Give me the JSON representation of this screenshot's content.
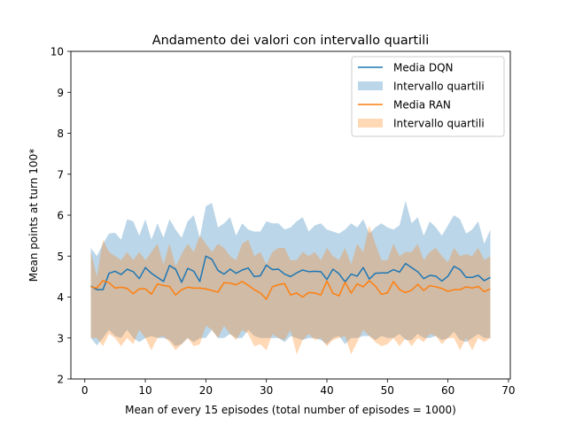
{
  "chart_data": {
    "type": "line",
    "title": "Andamento dei valori con intervallo quartili",
    "xlabel": "Mean of every 15 episodes (total number of episodes = 1000)",
    "ylabel": "Mean points at turn 100*",
    "xlim": [
      -2.3,
      70.3
    ],
    "ylim": [
      2,
      10
    ],
    "xticks": [
      0,
      10,
      20,
      30,
      40,
      50,
      60,
      70
    ],
    "yticks": [
      2,
      3,
      4,
      5,
      6,
      7,
      8,
      9,
      10
    ],
    "grid": false,
    "legend_placement": "top-right",
    "x": [
      1,
      2,
      3,
      4,
      5,
      6,
      7,
      8,
      9,
      10,
      11,
      12,
      13,
      14,
      15,
      16,
      17,
      18,
      19,
      20,
      21,
      22,
      23,
      24,
      25,
      26,
      27,
      28,
      29,
      30,
      31,
      32,
      33,
      34,
      35,
      36,
      37,
      38,
      39,
      40,
      41,
      42,
      43,
      44,
      45,
      46,
      47,
      48,
      49,
      50,
      51,
      52,
      53,
      54,
      55,
      56,
      57,
      58,
      59,
      60,
      61,
      62,
      63,
      64,
      65,
      66,
      67
    ],
    "series": [
      {
        "name": "Media DQN",
        "band_name": "Intervallo quartili",
        "color": "#1f77b4",
        "band_color": "#1f77b4",
        "band_opacity": 0.3,
        "values": [
          4.27,
          4.18,
          4.18,
          4.58,
          4.63,
          4.55,
          4.68,
          4.62,
          4.45,
          4.72,
          4.58,
          4.48,
          4.38,
          4.77,
          4.68,
          4.36,
          4.7,
          4.63,
          4.38,
          5.0,
          4.92,
          4.65,
          4.56,
          4.68,
          4.58,
          4.66,
          4.71,
          4.5,
          4.52,
          4.78,
          4.67,
          4.68,
          4.56,
          4.5,
          4.59,
          4.66,
          4.62,
          4.63,
          4.62,
          4.43,
          4.68,
          4.57,
          4.37,
          4.56,
          4.51,
          4.72,
          4.44,
          4.58,
          4.59,
          4.59,
          4.67,
          4.61,
          4.82,
          4.72,
          4.62,
          4.45,
          4.53,
          4.51,
          4.39,
          4.51,
          4.75,
          4.67,
          4.48,
          4.48,
          4.53,
          4.4,
          4.48
        ],
        "q_low": [
          3.0,
          2.82,
          3.0,
          3.2,
          3.05,
          3.0,
          3.2,
          3.0,
          2.9,
          3.0,
          3.05,
          3.0,
          3.0,
          2.95,
          2.8,
          2.85,
          3.0,
          2.9,
          3.0,
          3.0,
          3.2,
          3.0,
          3.0,
          3.1,
          3.0,
          3.0,
          3.2,
          3.05,
          3.0,
          3.0,
          3.0,
          3.0,
          2.9,
          3.05,
          3.0,
          2.95,
          3.0,
          3.0,
          2.95,
          2.85,
          3.0,
          3.05,
          2.85,
          3.0,
          3.0,
          3.05,
          3.05,
          2.95,
          3.05,
          3.0,
          3.0,
          3.1,
          2.95,
          2.95,
          3.1,
          3.0,
          3.0,
          3.05,
          2.95,
          3.0,
          3.15,
          2.95,
          2.9,
          3.0,
          3.1,
          3.0,
          3.0
        ],
        "q_high": [
          5.2,
          5.0,
          5.3,
          5.55,
          5.57,
          5.4,
          5.9,
          5.85,
          5.5,
          5.9,
          5.4,
          5.8,
          5.45,
          5.9,
          5.65,
          5.45,
          5.85,
          6.0,
          5.45,
          6.22,
          6.3,
          5.7,
          5.8,
          5.95,
          5.5,
          5.8,
          5.65,
          5.6,
          5.6,
          5.85,
          5.8,
          5.8,
          5.65,
          5.7,
          5.85,
          5.95,
          5.6,
          5.75,
          5.8,
          5.65,
          5.6,
          5.55,
          5.65,
          5.8,
          5.7,
          5.9,
          5.55,
          5.7,
          5.8,
          5.7,
          5.65,
          5.75,
          6.35,
          5.8,
          5.95,
          5.5,
          5.85,
          5.7,
          5.5,
          5.75,
          6.0,
          5.9,
          5.55,
          5.65,
          5.85,
          5.3,
          5.65
        ]
      },
      {
        "name": "Media RAN",
        "band_name": "Intervallo quartili",
        "color": "#ff7f0e",
        "band_color": "#ff7f0e",
        "band_opacity": 0.3,
        "values": [
          4.25,
          4.22,
          4.4,
          4.35,
          4.22,
          4.24,
          4.21,
          4.08,
          4.2,
          4.2,
          4.07,
          4.32,
          4.28,
          4.26,
          4.05,
          4.18,
          4.24,
          4.22,
          4.22,
          4.2,
          4.16,
          4.12,
          4.35,
          4.34,
          4.3,
          4.38,
          4.29,
          4.18,
          4.1,
          3.95,
          4.25,
          4.3,
          4.33,
          4.05,
          4.1,
          4.0,
          4.11,
          4.1,
          4.05,
          4.39,
          4.09,
          4.03,
          4.36,
          4.1,
          4.32,
          4.25,
          4.4,
          4.27,
          4.07,
          4.1,
          4.38,
          4.18,
          4.11,
          4.17,
          4.31,
          4.16,
          4.28,
          4.25,
          4.21,
          4.14,
          4.18,
          4.18,
          4.25,
          4.22,
          4.26,
          4.13,
          4.2
        ],
        "q_low": [
          3.0,
          3.0,
          2.8,
          3.1,
          3.0,
          2.8,
          3.0,
          2.85,
          3.2,
          3.0,
          2.7,
          3.0,
          3.05,
          2.9,
          2.7,
          2.85,
          3.0,
          2.8,
          2.85,
          3.3,
          3.2,
          3.0,
          3.3,
          3.1,
          2.95,
          3.2,
          3.1,
          2.8,
          2.85,
          2.7,
          3.1,
          3.0,
          2.95,
          3.2,
          2.6,
          2.95,
          3.1,
          2.95,
          3.0,
          2.8,
          2.95,
          3.0,
          3.05,
          2.6,
          2.9,
          3.2,
          3.05,
          2.9,
          2.8,
          2.85,
          3.0,
          2.8,
          3.0,
          2.8,
          3.0,
          2.9,
          3.1,
          3.05,
          2.85,
          3.0,
          3.0,
          2.7,
          3.0,
          2.7,
          3.0,
          2.9,
          3.0
        ],
        "q_high": [
          5.1,
          4.5,
          5.4,
          5.1,
          5.0,
          4.9,
          5.1,
          4.9,
          5.1,
          4.9,
          5.1,
          5.3,
          4.8,
          5.3,
          4.75,
          5.05,
          5.3,
          5.1,
          5.5,
          5.3,
          5.1,
          5.3,
          5.2,
          5.0,
          4.9,
          5.3,
          5.4,
          5.0,
          5.1,
          4.8,
          5.1,
          5.2,
          5.2,
          4.9,
          4.9,
          5.1,
          5.0,
          5.1,
          4.9,
          5.2,
          5.0,
          4.9,
          5.2,
          4.8,
          5.3,
          5.1,
          5.75,
          5.3,
          4.9,
          4.9,
          5.3,
          5.0,
          5.1,
          5.1,
          5.3,
          4.9,
          5.1,
          5.2,
          5.0,
          4.85,
          5.2,
          5.0,
          5.05,
          5.0,
          5.2,
          4.9,
          5.0
        ]
      }
    ]
  }
}
